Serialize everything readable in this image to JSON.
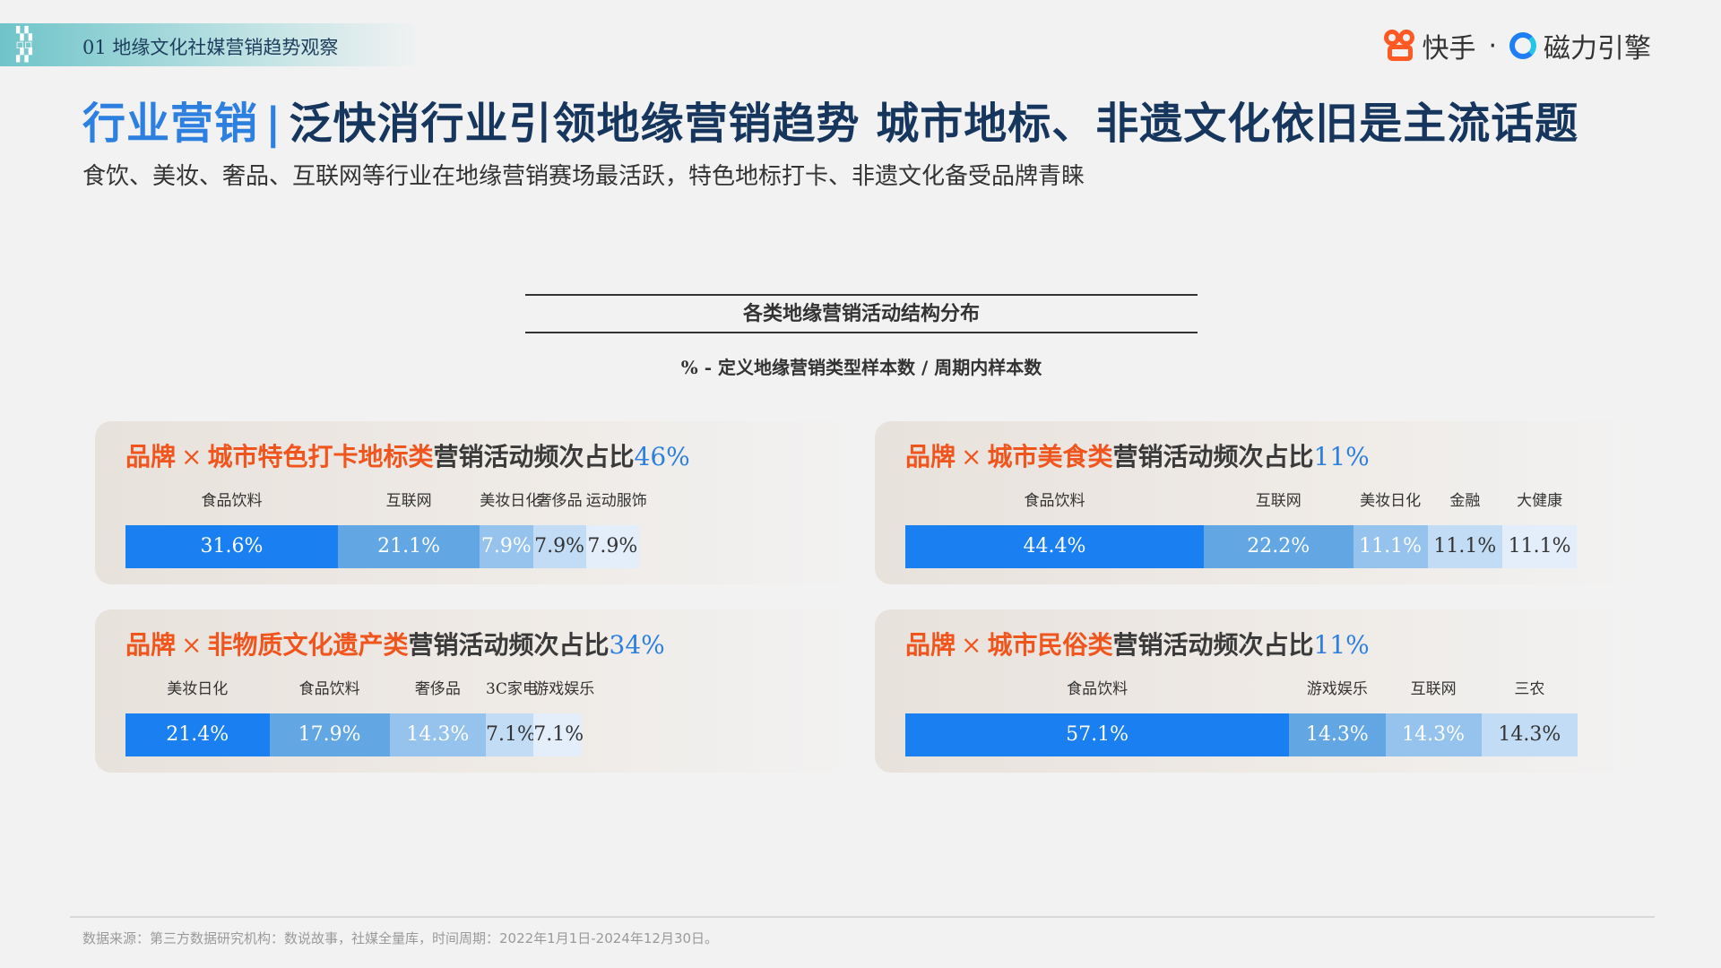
{
  "header": {
    "section_tag": "01 地缘文化社媒营销趋势观察",
    "brand_kuaishou": "快手",
    "brand_separator": "·",
    "brand_cili": "磁力引擎"
  },
  "title": {
    "part1": "行业营销",
    "separator": "|",
    "part2": "泛快消行业引领地缘营销趋势 城市地标、非遗文化依旧是主流话题"
  },
  "subtitle": "食饮、美妆、奢品、互联网等行业在地缘营销赛场最活跃，特色地标打卡、非遗文化备受品牌青睐",
  "chart_header": {
    "title": "各类地缘营销活动结构分布",
    "note": "% - 定义地缘营销类型样本数 / 周期内样本数"
  },
  "colors": {
    "blue_1": "#1a7ff0",
    "blue_2": "#62a7e3",
    "blue_3": "#95c3ee",
    "blue_4": "#c2dcf5",
    "blue_5": "#e3eefa",
    "orange": "#f0551e"
  },
  "chart_data": [
    {
      "type": "bar",
      "orientation": "horizontal-stacked",
      "title_parts": {
        "brand": "品牌",
        "x": "×",
        "topic": "城市特色打卡地标类",
        "rest": "营销活动频次占比",
        "pct": "46%"
      },
      "categories": [
        "食品饮料",
        "互联网",
        "美妆日化",
        "奢侈品",
        "运动服饰"
      ],
      "values": [
        31.6,
        21.1,
        7.9,
        7.9,
        7.9
      ],
      "value_labels": [
        "31.6%",
        "21.1%",
        "7.9%",
        "7.9%",
        "7.9%"
      ]
    },
    {
      "type": "bar",
      "orientation": "horizontal-stacked",
      "title_parts": {
        "brand": "品牌",
        "x": "×",
        "topic": "城市美食类",
        "rest": "营销活动频次占比",
        "pct": "11%"
      },
      "categories": [
        "食品饮料",
        "互联网",
        "美妆日化",
        "金融",
        "大健康"
      ],
      "values": [
        44.4,
        22.2,
        11.1,
        11.1,
        11.1
      ],
      "value_labels": [
        "44.4%",
        "22.2%",
        "11.1%",
        "11.1%",
        "11.1%"
      ]
    },
    {
      "type": "bar",
      "orientation": "horizontal-stacked",
      "title_parts": {
        "brand": "品牌",
        "x": "×",
        "topic": "非物质文化遗产类",
        "rest": "营销活动频次占比",
        "pct": "34%"
      },
      "categories": [
        "美妆日化",
        "食品饮料",
        "奢侈品",
        "3C家电",
        "游戏娱乐"
      ],
      "values": [
        21.4,
        17.9,
        14.3,
        7.1,
        7.1
      ],
      "value_labels": [
        "21.4%",
        "17.9%",
        "14.3%",
        "7.1%",
        "7.1%"
      ]
    },
    {
      "type": "bar",
      "orientation": "horizontal-stacked",
      "title_parts": {
        "brand": "品牌",
        "x": "×",
        "topic": "城市民俗类",
        "rest": "营销活动频次占比",
        "pct": "11%"
      },
      "categories": [
        "食品饮料",
        "游戏娱乐",
        "互联网",
        "三农"
      ],
      "values": [
        57.1,
        14.3,
        14.3,
        14.3
      ],
      "value_labels": [
        "57.1%",
        "14.3%",
        "14.3%",
        "14.3%"
      ]
    }
  ],
  "footer": {
    "source": "数据来源：第三方数据研究机构：数说故事，社媒全量库，时间周期：2022年1月1日-2024年12月30日。"
  }
}
